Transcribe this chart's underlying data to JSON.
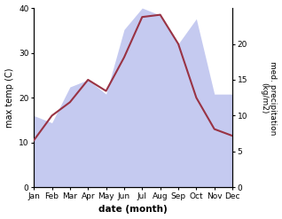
{
  "months": [
    "Jan",
    "Feb",
    "Mar",
    "Apr",
    "May",
    "Jun",
    "Jul",
    "Aug",
    "Sep",
    "Oct",
    "Nov",
    "Dec"
  ],
  "temp": [
    10.5,
    16.0,
    19.0,
    24.0,
    21.5,
    29.0,
    38.0,
    38.5,
    32.0,
    20.0,
    13.0,
    11.5
  ],
  "precip": [
    10.0,
    9.0,
    14.0,
    15.0,
    13.0,
    22.0,
    25.0,
    24.0,
    20.0,
    23.5,
    13.0,
    13.0
  ],
  "temp_color": "#993344",
  "precip_fill_color": "#c5caf0",
  "bg_color": "#ffffff",
  "xlabel": "date (month)",
  "ylabel_left": "max temp (C)",
  "ylabel_right": "med. precipitation\n(kg/m2)",
  "ylim_left": [
    0,
    40
  ],
  "ylim_right": [
    0,
    25
  ],
  "yticks_left": [
    0,
    10,
    20,
    30,
    40
  ],
  "yticks_right": [
    0,
    5,
    10,
    15,
    20
  ]
}
